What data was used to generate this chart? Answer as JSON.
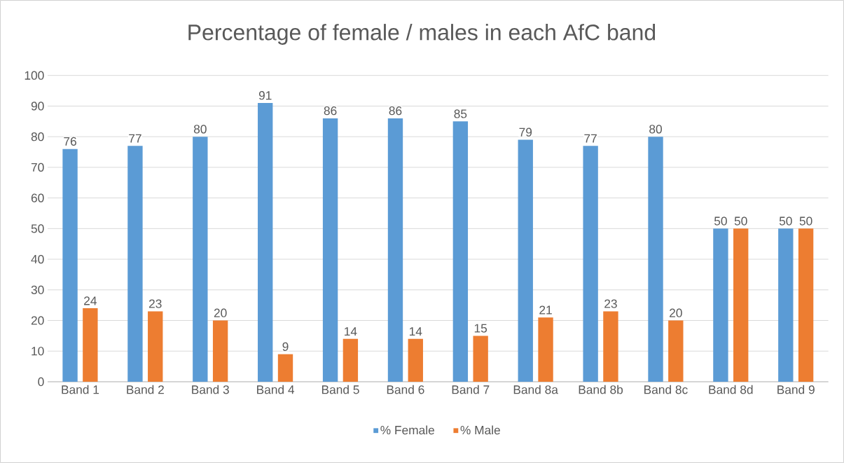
{
  "chart_data": {
    "type": "bar",
    "title": "Percentage of female / males in each AfC band",
    "categories": [
      "Band 1",
      "Band 2",
      "Band 3",
      "Band 4",
      "Band 5",
      "Band 6",
      "Band 7",
      "Band 8a",
      "Band 8b",
      "Band 8c",
      "Band 8d",
      "Band 9"
    ],
    "series": [
      {
        "name": "% Female",
        "color": "#5b9bd5",
        "values": [
          76,
          77,
          80,
          91,
          86,
          86,
          85,
          79,
          77,
          80,
          50,
          50
        ]
      },
      {
        "name": "% Male",
        "color": "#ed7d31",
        "values": [
          24,
          23,
          20,
          9,
          14,
          14,
          15,
          21,
          23,
          20,
          50,
          50
        ]
      }
    ],
    "ylim": [
      0,
      100
    ],
    "yticks": [
      0,
      10,
      20,
      30,
      40,
      50,
      60,
      70,
      80,
      90,
      100
    ],
    "grid": "y",
    "legend": "bottom",
    "data_labels": true
  }
}
